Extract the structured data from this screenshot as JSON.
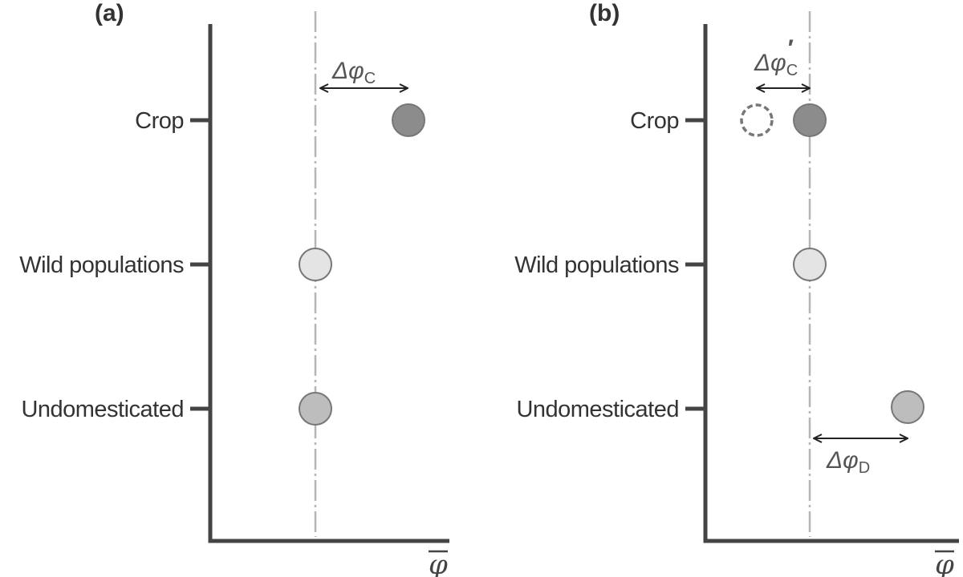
{
  "panels": [
    {
      "label": "(a)",
      "categories": [
        "Crop",
        "Wild populations",
        "Undomesticated"
      ],
      "delta_label": {
        "symbol": "Δφ",
        "subscript": "C"
      },
      "axis_symbol": "φ"
    },
    {
      "label": "(b)",
      "categories": [
        "Crop",
        "Wild populations",
        "Undomesticated"
      ],
      "delta_label_crop": {
        "symbol": "Δφ",
        "subscript": "C",
        "prime": "′"
      },
      "delta_label_undomesticated": {
        "symbol": "Δφ",
        "subscript": "D"
      },
      "axis_symbol": "φ"
    }
  ],
  "colors": {
    "crop_fill": "#8c8c8c",
    "wild_fill": "#e4e4e4",
    "undomesticated_fill": "#bdbdbd",
    "axis": "#444444",
    "reference_line": "#b5b5b5",
    "text": "#333333"
  }
}
